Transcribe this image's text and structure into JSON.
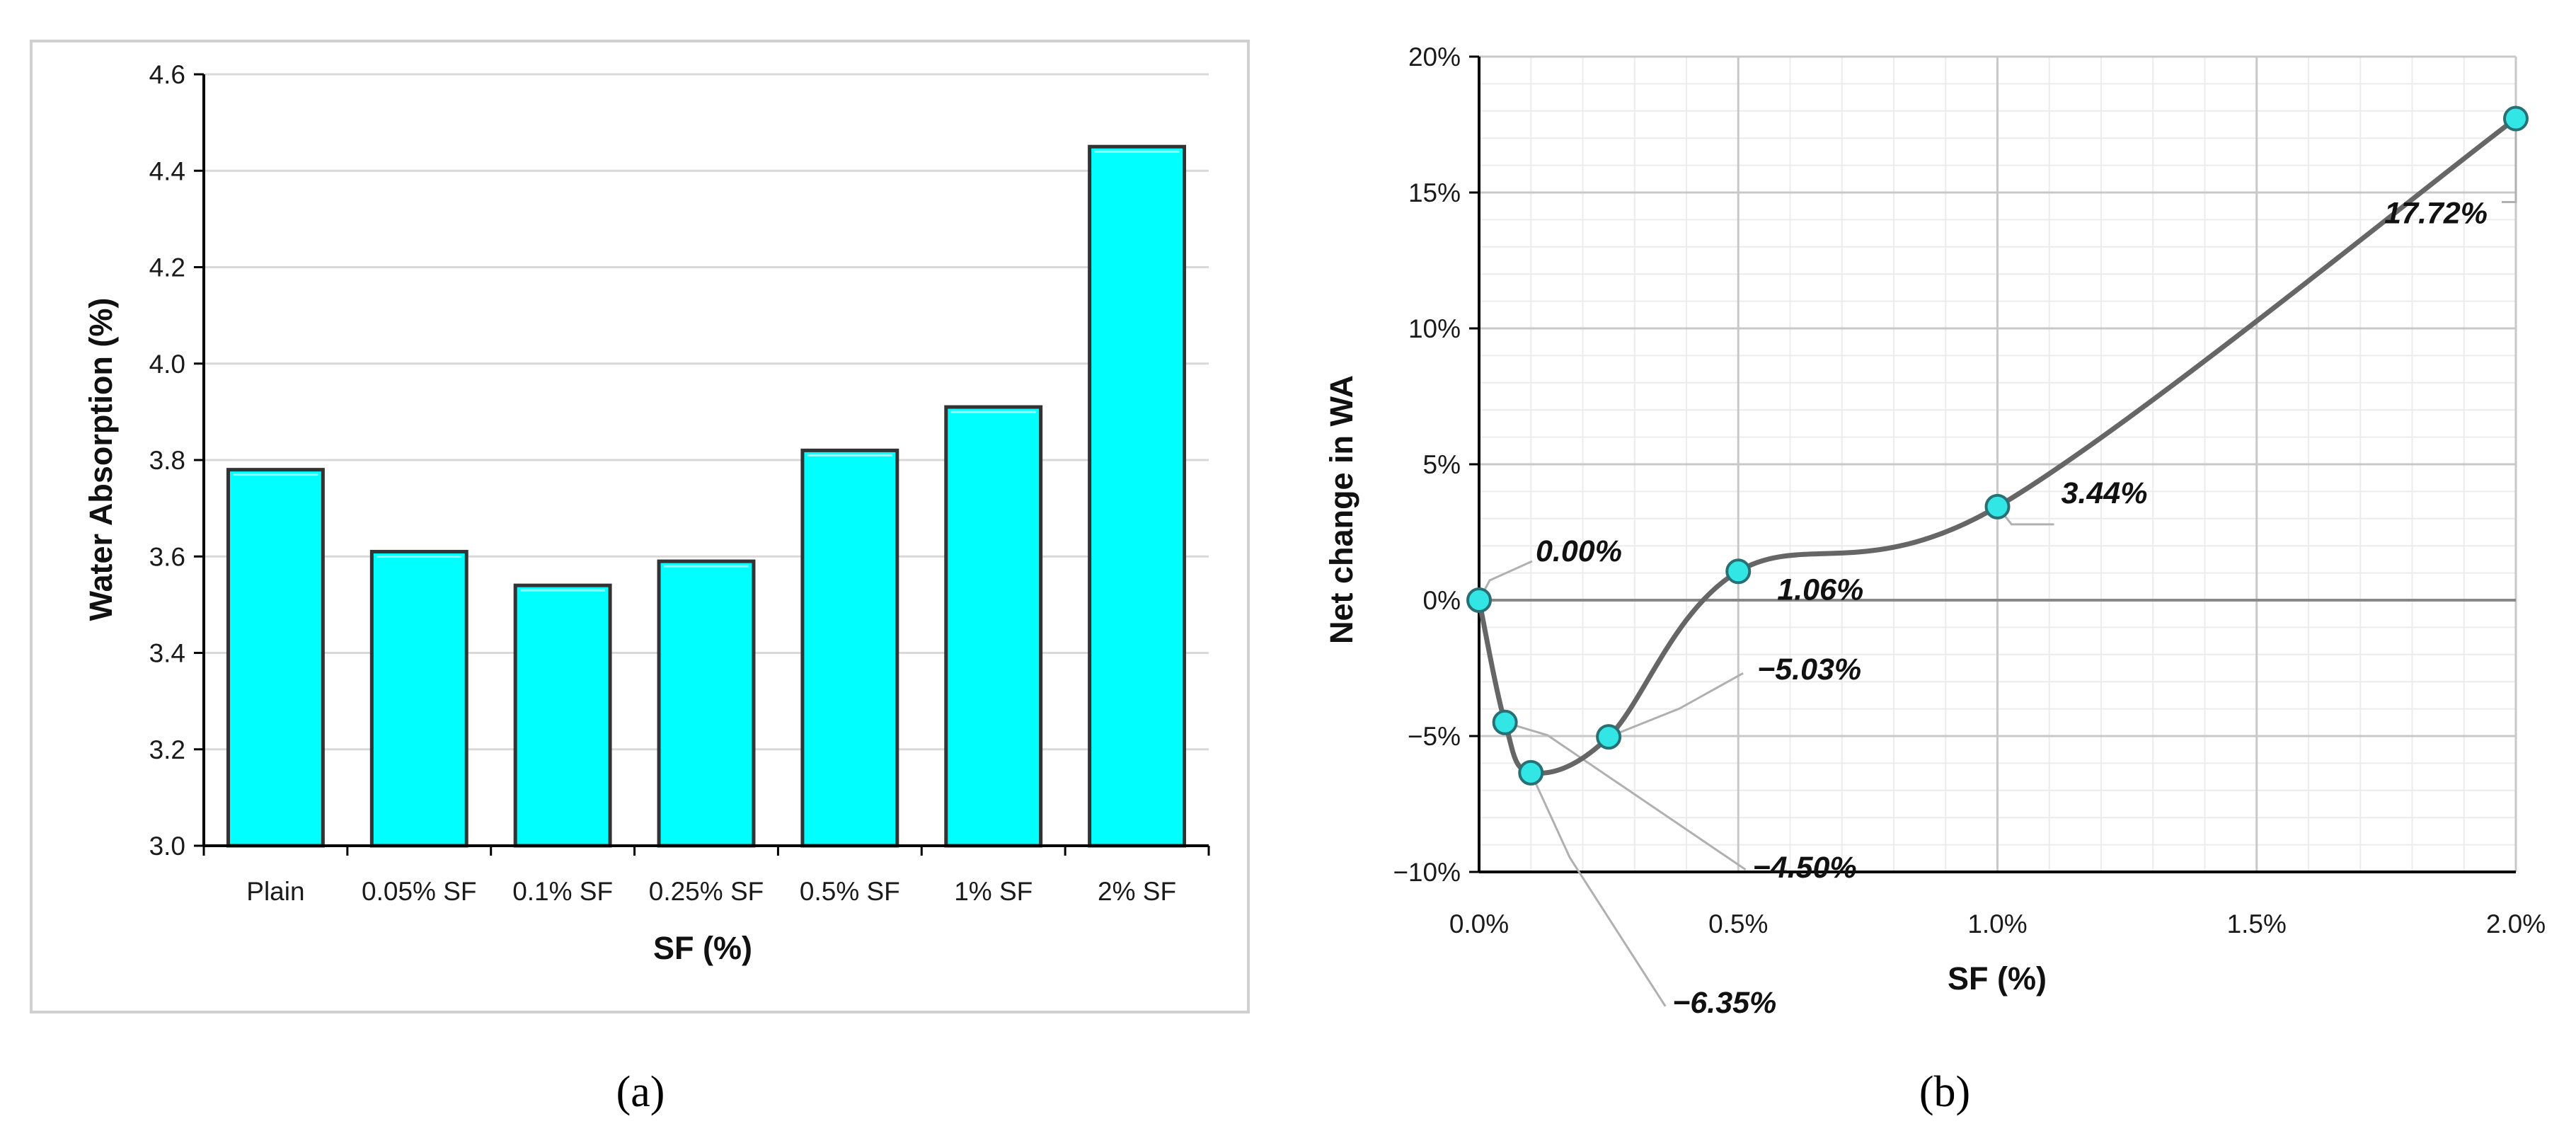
{
  "chart_data": [
    {
      "type": "bar",
      "panel_label": "(a)",
      "categories": [
        "Plain",
        "0.05% SF",
        "0.1% SF",
        "0.25% SF",
        "0.5% SF",
        "1% SF",
        "2% SF"
      ],
      "values": [
        3.78,
        3.61,
        3.54,
        3.59,
        3.82,
        3.91,
        4.45
      ],
      "xlabel": "SF (%)",
      "ylabel": "Water Absorption (%)",
      "ylim": [
        3.0,
        4.6
      ],
      "yticks": [
        "3.0",
        "3.2",
        "3.4",
        "3.6",
        "3.8",
        "4.0",
        "4.2",
        "4.4",
        "4.6"
      ],
      "grid": "horizontal",
      "bar_color": "#00ffff",
      "bar_edge_color": "#333333"
    },
    {
      "type": "line",
      "panel_label": "(b)",
      "x": [
        0,
        0.05,
        0.1,
        0.25,
        0.5,
        1.0,
        2.0
      ],
      "y": [
        0.0,
        -4.5,
        -6.35,
        -5.03,
        1.06,
        3.44,
        17.72
      ],
      "data_labels": [
        "0.00%",
        "−4.50%",
        "−6.35%",
        "−5.03%",
        "1.06%",
        "3.44%",
        "17.72%"
      ],
      "xlabel": "SF (%)",
      "ylabel": "Net change in WA",
      "xlim": [
        0,
        2.0
      ],
      "ylim": [
        -10,
        20
      ],
      "xticks": [
        "0.0%",
        "0.5%",
        "1.0%",
        "1.5%",
        "2.0%"
      ],
      "yticks": [
        "−10%",
        "−5%",
        "0%",
        "5%",
        "10%",
        "15%",
        "20%"
      ],
      "grid": "major and minor",
      "line_color": "#666666",
      "marker_color": "#33e6e6"
    }
  ]
}
